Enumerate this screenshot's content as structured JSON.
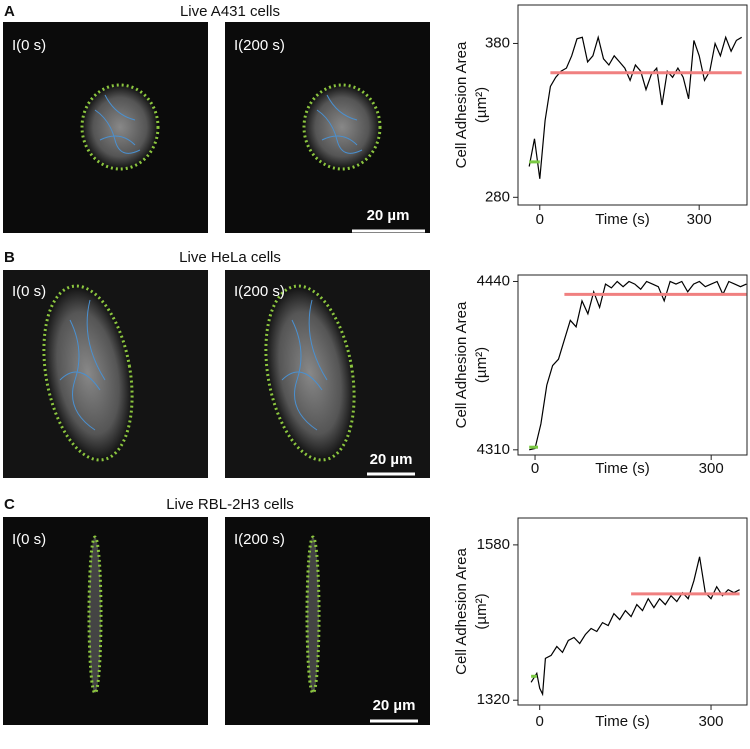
{
  "panels": [
    {
      "letter": "A",
      "title": "Live A431 cells",
      "images": [
        "I(0 s)",
        "I(200 s)"
      ],
      "scale_bar": "20 µm"
    },
    {
      "letter": "B",
      "title": "Live HeLa cells",
      "images": [
        "I(0 s)",
        "I(200 s)"
      ],
      "scale_bar": "20 µm"
    },
    {
      "letter": "C",
      "title": "Live RBL-2H3 cells",
      "images": [
        "I(0 s)",
        "I(200 s)"
      ],
      "scale_bar": "20 µm"
    }
  ],
  "chart_data": [
    {
      "type": "line",
      "xlabel": "Time (s)",
      "ylabel": [
        "Cell Adhesion Area",
        "(µm²)"
      ],
      "xlim": [
        -41,
        390
      ],
      "ylim": [
        275,
        405
      ],
      "xticks": [
        0,
        300
      ],
      "yticks": [
        280,
        380
      ],
      "series": [
        {
          "color": "#000000",
          "x": [
            -20,
            -10,
            0,
            10,
            20,
            30,
            40,
            50,
            60,
            70,
            80,
            90,
            100,
            110,
            120,
            130,
            140,
            150,
            160,
            170,
            180,
            190,
            200,
            210,
            220,
            230,
            240,
            250,
            260,
            270,
            280,
            290,
            300,
            310,
            320,
            330,
            340,
            350,
            360,
            370,
            380
          ],
          "values": [
            300,
            318,
            292,
            330,
            352,
            358,
            362,
            364,
            372,
            383,
            384,
            368,
            372,
            384,
            370,
            366,
            372,
            368,
            364,
            356,
            366,
            362,
            350,
            360,
            364,
            340,
            362,
            358,
            364,
            358,
            344,
            382,
            372,
            356,
            362,
            380,
            372,
            384,
            375,
            382,
            384
          ]
        },
        {
          "color": "#7ac943",
          "x": [
            -20,
            0
          ],
          "values": [
            303,
            303
          ]
        },
        {
          "color": "#f08080",
          "x": [
            20,
            380
          ],
          "values": [
            361,
            361
          ]
        }
      ]
    },
    {
      "type": "line",
      "xlabel": "Time (s)",
      "ylabel": [
        "Cell Adhesion Area",
        "(µm²)"
      ],
      "xlim": [
        -29,
        361
      ],
      "ylim": [
        4306,
        4445
      ],
      "xticks": [
        0,
        300
      ],
      "yticks": [
        4310,
        4440
      ],
      "series": [
        {
          "color": "#000000",
          "x": [
            -10,
            0,
            10,
            20,
            30,
            40,
            50,
            60,
            70,
            80,
            90,
            100,
            110,
            120,
            130,
            140,
            150,
            160,
            170,
            180,
            190,
            200,
            210,
            220,
            230,
            240,
            250,
            260,
            270,
            280,
            290,
            300,
            310,
            320,
            330,
            340,
            350,
            360
          ],
          "values": [
            4310,
            4311,
            4330,
            4360,
            4375,
            4380,
            4395,
            4410,
            4405,
            4425,
            4415,
            4432,
            4420,
            4438,
            4435,
            4440,
            4436,
            4440,
            4438,
            4434,
            4440,
            4438,
            4436,
            4425,
            4440,
            4438,
            4440,
            4432,
            4438,
            4440,
            4436,
            4438,
            4440,
            4430,
            4440,
            4438,
            4436,
            4438
          ]
        },
        {
          "color": "#7ac943",
          "x": [
            -10,
            5
          ],
          "values": [
            4312,
            4312
          ]
        },
        {
          "color": "#f08080",
          "x": [
            50,
            360
          ],
          "values": [
            4430,
            4430
          ]
        }
      ]
    },
    {
      "type": "line",
      "xlabel": "Time (s)",
      "ylabel": [
        "Cell Adhesion Area",
        "(µm²)"
      ],
      "xlim": [
        -38,
        363
      ],
      "ylim": [
        1312,
        1625
      ],
      "xticks": [
        0,
        300
      ],
      "yticks": [
        1320,
        1580
      ],
      "series": [
        {
          "color": "#000000",
          "x": [
            -15,
            -5,
            0,
            5,
            10,
            20,
            30,
            40,
            50,
            60,
            70,
            80,
            90,
            100,
            110,
            120,
            130,
            140,
            150,
            160,
            170,
            180,
            190,
            200,
            210,
            220,
            230,
            240,
            250,
            260,
            270,
            280,
            290,
            300,
            310,
            320,
            330,
            340,
            350
          ],
          "values": [
            1350,
            1365,
            1340,
            1330,
            1390,
            1395,
            1410,
            1400,
            1420,
            1425,
            1415,
            1430,
            1440,
            1435,
            1450,
            1445,
            1465,
            1455,
            1470,
            1460,
            1480,
            1470,
            1490,
            1475,
            1490,
            1480,
            1495,
            1485,
            1500,
            1490,
            1520,
            1560,
            1500,
            1490,
            1510,
            1495,
            1505,
            1500,
            1505
          ]
        },
        {
          "color": "#7ac943",
          "x": [
            -15,
            -5
          ],
          "values": [
            1360,
            1360
          ]
        },
        {
          "color": "#f08080",
          "x": [
            160,
            350
          ],
          "values": [
            1498,
            1498
          ]
        }
      ]
    }
  ]
}
